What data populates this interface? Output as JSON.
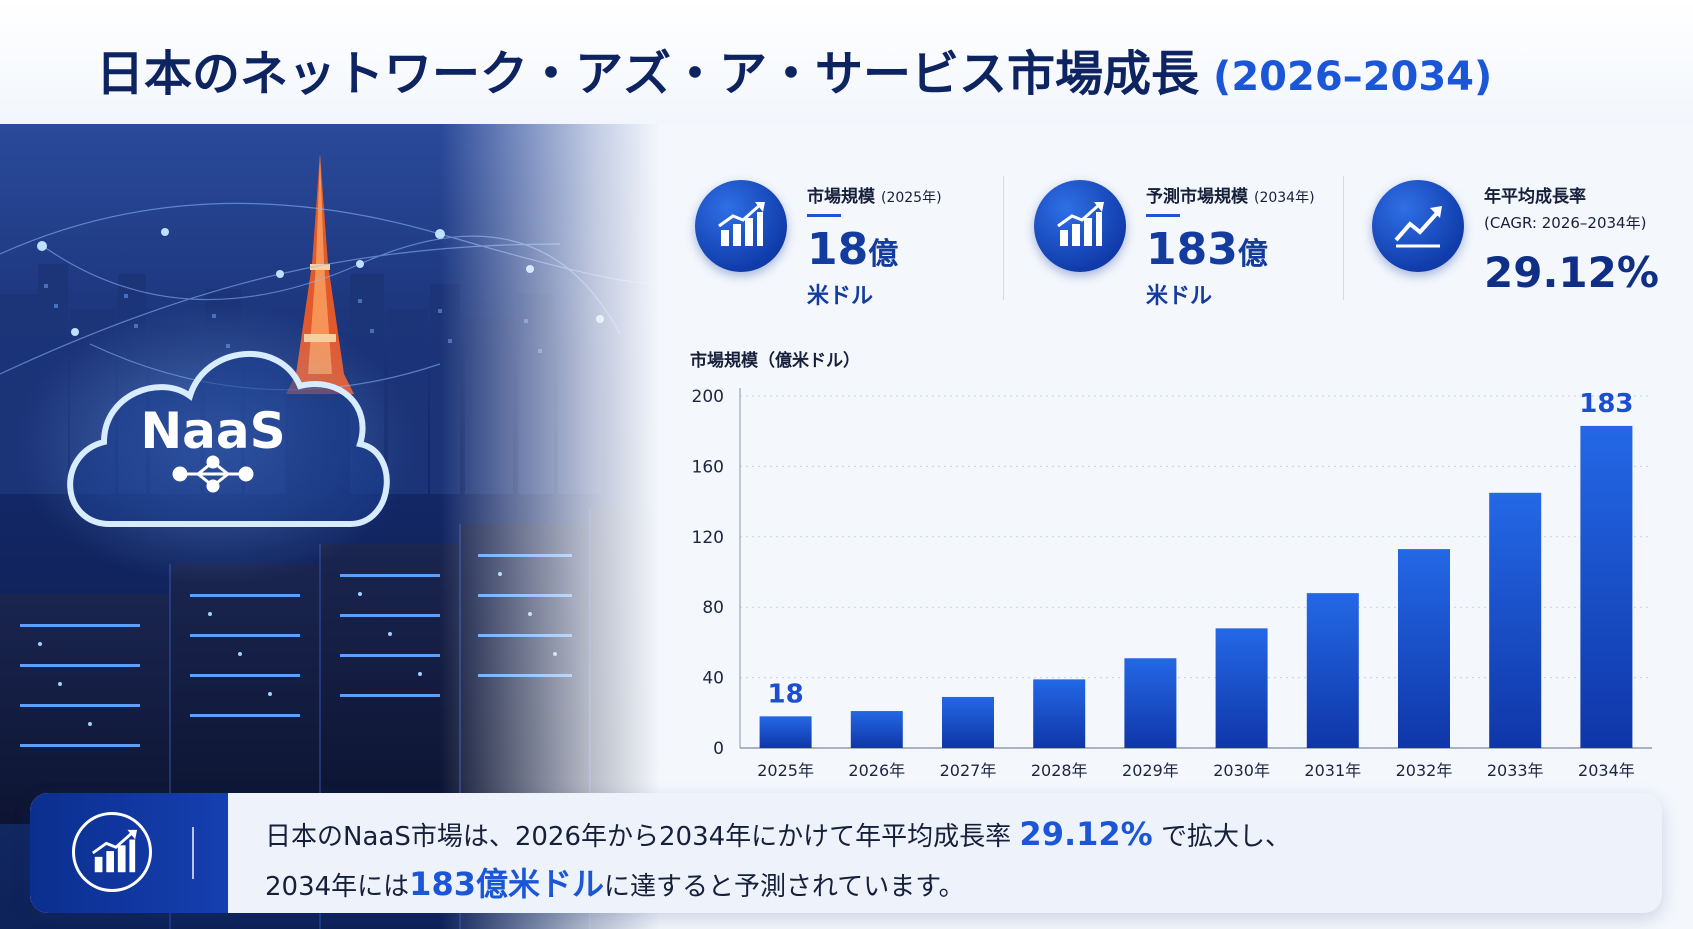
{
  "title": {
    "main": "日本のネットワーク・アズ・ア・サービス市場成長",
    "period": "(2026–2034)"
  },
  "hero": {
    "badge": "NaaS"
  },
  "kpis": [
    {
      "label": "市場規模",
      "sub": "(2025年)",
      "value": "18",
      "unit": "億",
      "unit2": "米ドル",
      "icon": "bar-growth-icon"
    },
    {
      "label": "予測市場規模",
      "sub": "(2034年)",
      "value": "183",
      "unit": "億",
      "unit2": "米ドル",
      "icon": "bar-growth-icon"
    },
    {
      "label": "年平均成長率",
      "sub": "(CAGR: 2026–2034年)",
      "value": "29.12%",
      "icon": "trend-up-icon"
    }
  ],
  "chart_data": {
    "type": "bar",
    "ylabel": "市場規模（億米ドル）",
    "categories": [
      "2025年",
      "2026年",
      "2027年",
      "2028年",
      "2029年",
      "2030年",
      "2031年",
      "2032年",
      "2033年",
      "2034年"
    ],
    "values": [
      18,
      21,
      29,
      39,
      51,
      68,
      88,
      113,
      145,
      183
    ],
    "data_labels": [
      {
        "index": 0,
        "text": "18"
      },
      {
        "index": 9,
        "text": "183"
      }
    ],
    "ylim": [
      0,
      200
    ],
    "yticks": [
      0,
      40,
      80,
      120,
      160,
      200
    ],
    "color": "#1b4fd0",
    "grid": "horizontal dotted"
  },
  "summary": {
    "l1_a": "日本のNaaS市場は、2026年から2034年にかけて年平均成長率 ",
    "l1_hl": "29.12%",
    "l1_b": " で拡大し、",
    "l2_a": "2034年には",
    "l2_hl": "183億米ドル",
    "l2_b": "に達すると予測されています。",
    "icon": "bar-growth-icon"
  },
  "colors": {
    "navy": "#0d2461",
    "accent": "#1b56d6",
    "bar": "#1b4fd0"
  }
}
